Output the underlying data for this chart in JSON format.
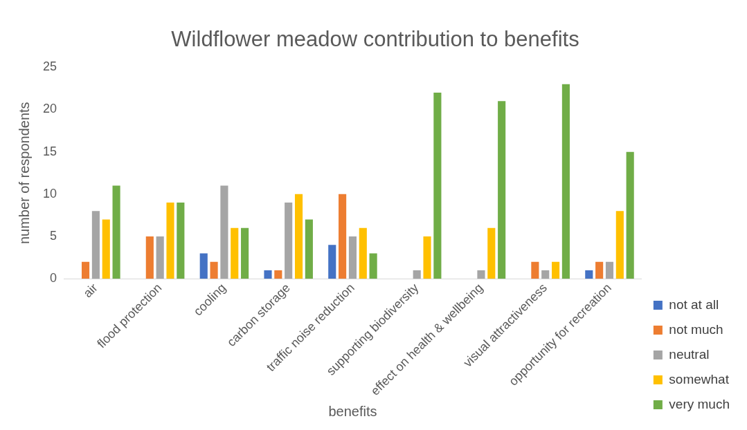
{
  "chart_data": {
    "type": "bar",
    "title": "Wildflower meadow contribution to benefits",
    "xlabel": "benefits",
    "ylabel": "number of respondents",
    "categories": [
      "air",
      "flood protection",
      "cooling",
      "carbon storage",
      "traffic noise reduction",
      "supporting biodiversity",
      "effect on health & wellbeing",
      "visual attractiveness",
      "opportunity for recreation"
    ],
    "series": [
      {
        "name": "not at all",
        "color": "#4472c4",
        "values": [
          0,
          0,
          3,
          1,
          4,
          0,
          0,
          0,
          1
        ]
      },
      {
        "name": "not much",
        "color": "#ed7d31",
        "values": [
          2,
          5,
          2,
          1,
          10,
          0,
          0,
          2,
          2
        ]
      },
      {
        "name": "neutral",
        "color": "#a5a5a5",
        "values": [
          8,
          5,
          11,
          9,
          5,
          1,
          1,
          1,
          2
        ]
      },
      {
        "name": "somewhat",
        "color": "#ffc000",
        "values": [
          7,
          9,
          6,
          10,
          6,
          5,
          6,
          2,
          8
        ]
      },
      {
        "name": "very much",
        "color": "#70ad47",
        "values": [
          11,
          9,
          6,
          7,
          3,
          22,
          21,
          23,
          15
        ]
      }
    ],
    "ylim": [
      0,
      25
    ],
    "yticks": [
      0,
      5,
      10,
      15,
      20,
      25
    ],
    "legend": "bottom right"
  }
}
